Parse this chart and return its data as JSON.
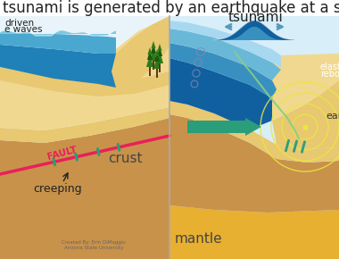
{
  "title": "tsunami is generated by an earthquake at a subduc",
  "title_fontsize": 12,
  "title_color": "#222222",
  "left_panel": {
    "sky_color": "#e8f4fa",
    "ocean_light": "#7ec8e3",
    "ocean_mid": "#4aa8d0",
    "ocean_dark": "#2080b8",
    "sand_color": "#e8c870",
    "sand_light": "#f0d890",
    "crust_color": "#c8924a",
    "crust_dark": "#b07838",
    "mantle_color": "#e8b030",
    "fault_color": "#e8205a",
    "teal_color": "#2a9e7a",
    "tree_green": "#2d7a1a",
    "tree_dark": "#1a5a10",
    "tree_trunk": "#5a3a1a",
    "label_crust": "crust",
    "label_fault": "FAULT",
    "label_creeping": "creeping",
    "label_driven": "driven",
    "label_waves": "e waves",
    "credit1": "Created By: Erin DiMaggio",
    "credit2": "Arizona State University"
  },
  "right_panel": {
    "sky_color": "#d8eef8",
    "ocean_light": "#6ab8d8",
    "ocean_mid": "#3890c0",
    "ocean_dark": "#1060a0",
    "sand_color": "#e8c870",
    "sand_light": "#f0d890",
    "crust_color": "#c8924a",
    "mantle_color": "#e8b030",
    "arrow_color": "#2a9e7a",
    "seismic_color": "#e8e840",
    "label_tsunami": "tsunami",
    "label_elastic": "elast",
    "label_rebound": "rebo",
    "label_earth": "ear",
    "label_mantle": "mantle"
  },
  "divider_color": "#aaaaaa",
  "title_bg": "#ffffff"
}
